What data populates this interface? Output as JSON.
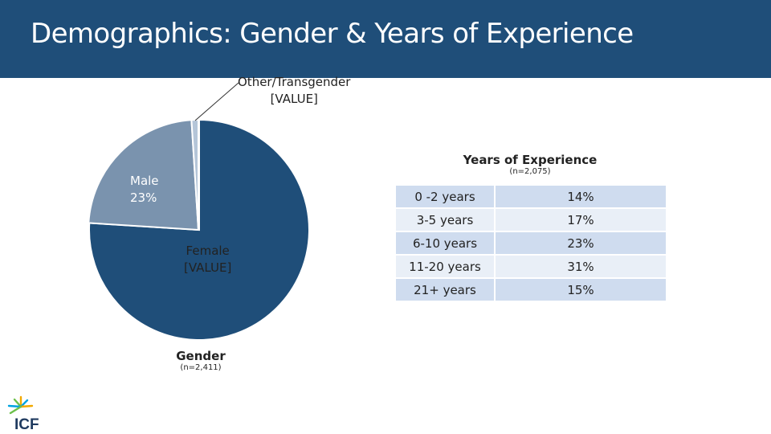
{
  "header": {
    "title": "Demographics: Gender & Years of Experience",
    "background": "#1f4e79"
  },
  "chart_data": [
    {
      "type": "pie",
      "title": "Gender",
      "subtitle": "(n=2,411)",
      "slices": [
        {
          "label": "Female",
          "value_label": "[VALUE]",
          "value": 76,
          "color": "#1f4e79"
        },
        {
          "label": "Male",
          "value_label": "23%",
          "value": 23,
          "color": "#7a93ae"
        },
        {
          "label": "Other/Transgender",
          "value_label": "[VALUE]",
          "value": 1,
          "color": "#b4c5d8"
        }
      ]
    },
    {
      "type": "table",
      "title": "Years of Experience",
      "subtitle": "(n=2,075)",
      "rows": [
        {
          "label": "0 -2 years",
          "value": "14%"
        },
        {
          "label": "3-5 years",
          "value": "17%"
        },
        {
          "label": "6-10 years",
          "value": "23%"
        },
        {
          "label": "11-20 years",
          "value": "31%"
        },
        {
          "label": "21+ years",
          "value": "15%"
        }
      ]
    }
  ],
  "logo": {
    "text": "ICF"
  }
}
